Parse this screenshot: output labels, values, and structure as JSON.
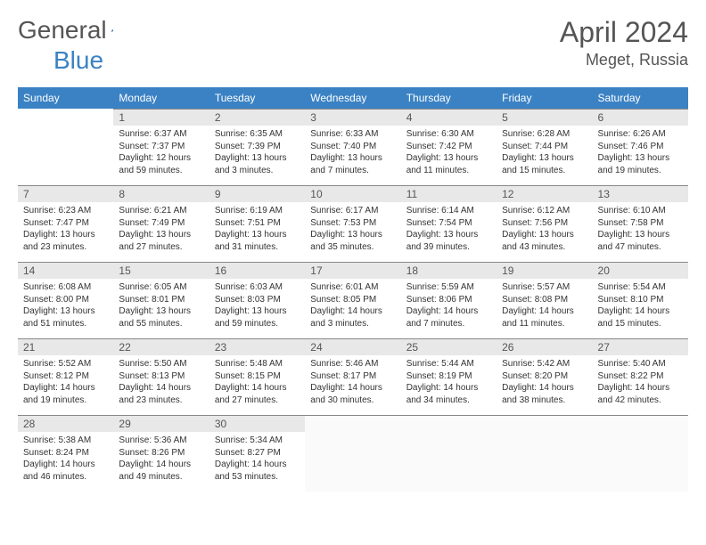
{
  "logo": {
    "text1": "General",
    "text2": "Blue"
  },
  "title": "April 2024",
  "location": "Meget, Russia",
  "colors": {
    "header_bg": "#3b82c4",
    "header_fg": "#ffffff",
    "daynum_bg": "#e8e8e8",
    "border": "#888888",
    "logo_gray": "#555555",
    "logo_blue": "#3b82c4"
  },
  "daysOfWeek": [
    "Sunday",
    "Monday",
    "Tuesday",
    "Wednesday",
    "Thursday",
    "Friday",
    "Saturday"
  ],
  "firstDayIndex": 1,
  "daysInMonth": 30,
  "entries": {
    "1": {
      "sunrise": "6:37 AM",
      "sunset": "7:37 PM",
      "daylight": "12 hours and 59 minutes."
    },
    "2": {
      "sunrise": "6:35 AM",
      "sunset": "7:39 PM",
      "daylight": "13 hours and 3 minutes."
    },
    "3": {
      "sunrise": "6:33 AM",
      "sunset": "7:40 PM",
      "daylight": "13 hours and 7 minutes."
    },
    "4": {
      "sunrise": "6:30 AM",
      "sunset": "7:42 PM",
      "daylight": "13 hours and 11 minutes."
    },
    "5": {
      "sunrise": "6:28 AM",
      "sunset": "7:44 PM",
      "daylight": "13 hours and 15 minutes."
    },
    "6": {
      "sunrise": "6:26 AM",
      "sunset": "7:46 PM",
      "daylight": "13 hours and 19 minutes."
    },
    "7": {
      "sunrise": "6:23 AM",
      "sunset": "7:47 PM",
      "daylight": "13 hours and 23 minutes."
    },
    "8": {
      "sunrise": "6:21 AM",
      "sunset": "7:49 PM",
      "daylight": "13 hours and 27 minutes."
    },
    "9": {
      "sunrise": "6:19 AM",
      "sunset": "7:51 PM",
      "daylight": "13 hours and 31 minutes."
    },
    "10": {
      "sunrise": "6:17 AM",
      "sunset": "7:53 PM",
      "daylight": "13 hours and 35 minutes."
    },
    "11": {
      "sunrise": "6:14 AM",
      "sunset": "7:54 PM",
      "daylight": "13 hours and 39 minutes."
    },
    "12": {
      "sunrise": "6:12 AM",
      "sunset": "7:56 PM",
      "daylight": "13 hours and 43 minutes."
    },
    "13": {
      "sunrise": "6:10 AM",
      "sunset": "7:58 PM",
      "daylight": "13 hours and 47 minutes."
    },
    "14": {
      "sunrise": "6:08 AM",
      "sunset": "8:00 PM",
      "daylight": "13 hours and 51 minutes."
    },
    "15": {
      "sunrise": "6:05 AM",
      "sunset": "8:01 PM",
      "daylight": "13 hours and 55 minutes."
    },
    "16": {
      "sunrise": "6:03 AM",
      "sunset": "8:03 PM",
      "daylight": "13 hours and 59 minutes."
    },
    "17": {
      "sunrise": "6:01 AM",
      "sunset": "8:05 PM",
      "daylight": "14 hours and 3 minutes."
    },
    "18": {
      "sunrise": "5:59 AM",
      "sunset": "8:06 PM",
      "daylight": "14 hours and 7 minutes."
    },
    "19": {
      "sunrise": "5:57 AM",
      "sunset": "8:08 PM",
      "daylight": "14 hours and 11 minutes."
    },
    "20": {
      "sunrise": "5:54 AM",
      "sunset": "8:10 PM",
      "daylight": "14 hours and 15 minutes."
    },
    "21": {
      "sunrise": "5:52 AM",
      "sunset": "8:12 PM",
      "daylight": "14 hours and 19 minutes."
    },
    "22": {
      "sunrise": "5:50 AM",
      "sunset": "8:13 PM",
      "daylight": "14 hours and 23 minutes."
    },
    "23": {
      "sunrise": "5:48 AM",
      "sunset": "8:15 PM",
      "daylight": "14 hours and 27 minutes."
    },
    "24": {
      "sunrise": "5:46 AM",
      "sunset": "8:17 PM",
      "daylight": "14 hours and 30 minutes."
    },
    "25": {
      "sunrise": "5:44 AM",
      "sunset": "8:19 PM",
      "daylight": "14 hours and 34 minutes."
    },
    "26": {
      "sunrise": "5:42 AM",
      "sunset": "8:20 PM",
      "daylight": "14 hours and 38 minutes."
    },
    "27": {
      "sunrise": "5:40 AM",
      "sunset": "8:22 PM",
      "daylight": "14 hours and 42 minutes."
    },
    "28": {
      "sunrise": "5:38 AM",
      "sunset": "8:24 PM",
      "daylight": "14 hours and 46 minutes."
    },
    "29": {
      "sunrise": "5:36 AM",
      "sunset": "8:26 PM",
      "daylight": "14 hours and 49 minutes."
    },
    "30": {
      "sunrise": "5:34 AM",
      "sunset": "8:27 PM",
      "daylight": "14 hours and 53 minutes."
    }
  },
  "labels": {
    "sunrise": "Sunrise:",
    "sunset": "Sunset:",
    "daylight": "Daylight:"
  }
}
